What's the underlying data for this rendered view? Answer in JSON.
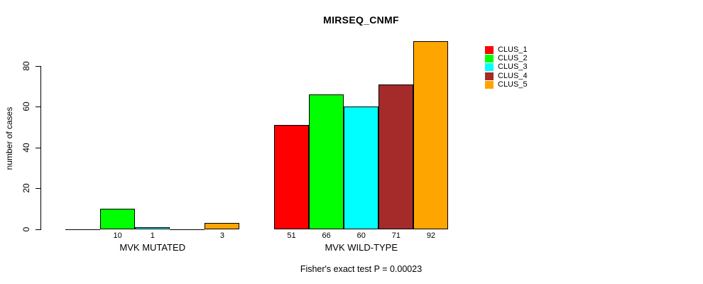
{
  "chart_data": {
    "type": "bar",
    "title": "MIRSEQ_CNMF",
    "ylabel": "number of cases",
    "xlabel": "",
    "yticks": [
      0,
      20,
      40,
      60,
      80
    ],
    "ylim": [
      0,
      92
    ],
    "grid": false,
    "categories": [
      "MVK MUTATED",
      "MVK WILD-TYPE"
    ],
    "series": [
      {
        "name": "CLUS_1",
        "color": "#FF0000",
        "values": [
          0,
          51
        ]
      },
      {
        "name": "CLUS_2",
        "color": "#00FF00",
        "values": [
          10,
          66
        ]
      },
      {
        "name": "CLUS_3",
        "color": "#00FFFF",
        "values": [
          1,
          60
        ]
      },
      {
        "name": "CLUS_4",
        "color": "#A52A2A",
        "values": [
          0,
          71
        ]
      },
      {
        "name": "CLUS_5",
        "color": "#FFA500",
        "values": [
          3,
          92
        ]
      }
    ],
    "bar_value_labels_shown": true,
    "legend_position": "right",
    "annotation": "Fisher's exact test P = 0.00023"
  }
}
